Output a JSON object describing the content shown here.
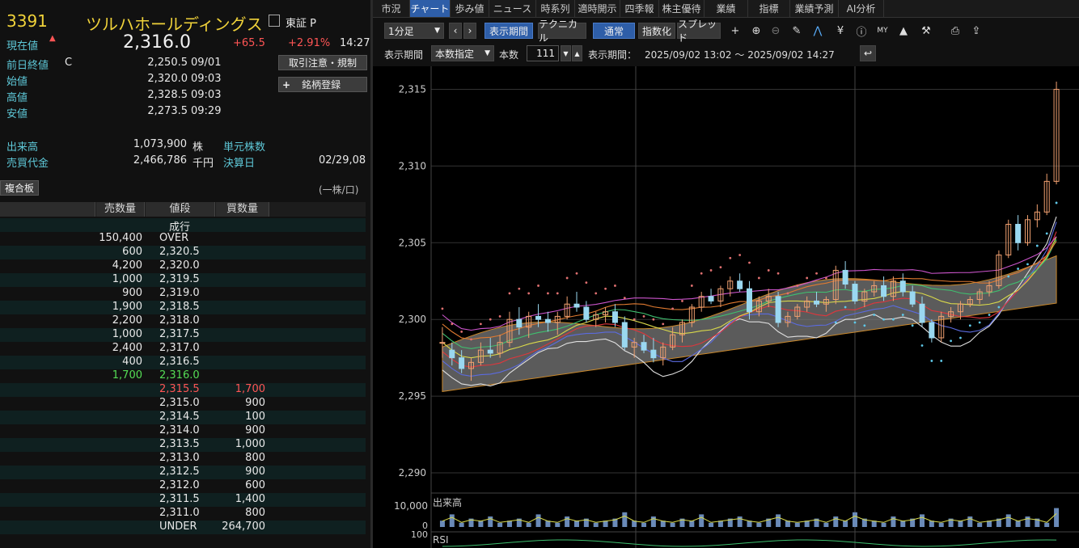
{
  "stock": {
    "code": "3391",
    "name": "ツルハホールディングス",
    "market": "東証 P",
    "current_label": "現在値",
    "current_price": "2,316.0",
    "change": "+65.5",
    "change_pct": "+2.91%",
    "time": "14:27",
    "rows": [
      {
        "label": "前日終値",
        "flag": "C",
        "value": "2,250.5",
        "time": "09/01"
      },
      {
        "label": "始値",
        "flag": "",
        "value": "2,320.0",
        "time": "09:03"
      },
      {
        "label": "高値",
        "flag": "",
        "value": "2,328.5",
        "time": "09:03"
      },
      {
        "label": "安値",
        "flag": "",
        "value": "2,273.5",
        "time": "09:29"
      }
    ],
    "volume_label": "出来高",
    "volume": "1,073,900",
    "volume_unit": "株",
    "turnover_label": "売買代金",
    "turnover": "2,466,786",
    "turnover_unit": "千円",
    "unit_label": "単元株数",
    "settle_label": "決算日",
    "settle_value": "02/29,08"
  },
  "buttons": {
    "notice": "取引注意・規制",
    "register": "銘柄登録",
    "register_icon": "plus-icon",
    "fukugou": "複合板",
    "per_share": "(一株/口)"
  },
  "orderbook": {
    "headers": [
      "売数量",
      "値段",
      "買数量"
    ],
    "market_order": "成行",
    "rows": [
      {
        "sell": "150,400",
        "price": "OVER",
        "buy": ""
      },
      {
        "sell": "600",
        "price": "2,320.5",
        "buy": ""
      },
      {
        "sell": "4,200",
        "price": "2,320.0",
        "buy": ""
      },
      {
        "sell": "1,000",
        "price": "2,319.5",
        "buy": ""
      },
      {
        "sell": "900",
        "price": "2,319.0",
        "buy": ""
      },
      {
        "sell": "1,900",
        "price": "2,318.5",
        "buy": ""
      },
      {
        "sell": "2,200",
        "price": "2,318.0",
        "buy": ""
      },
      {
        "sell": "1,000",
        "price": "2,317.5",
        "buy": ""
      },
      {
        "sell": "2,400",
        "price": "2,317.0",
        "buy": ""
      },
      {
        "sell": "400",
        "price": "2,316.5",
        "buy": ""
      },
      {
        "sell": "1,700",
        "price": "2,316.0",
        "buy": "",
        "hl": "green"
      },
      {
        "sell": "",
        "price": "2,315.5",
        "buy": "1,700",
        "hl": "red"
      },
      {
        "sell": "",
        "price": "2,315.0",
        "buy": "900"
      },
      {
        "sell": "",
        "price": "2,314.5",
        "buy": "100"
      },
      {
        "sell": "",
        "price": "2,314.0",
        "buy": "900"
      },
      {
        "sell": "",
        "price": "2,313.5",
        "buy": "1,000"
      },
      {
        "sell": "",
        "price": "2,313.0",
        "buy": "800"
      },
      {
        "sell": "",
        "price": "2,312.5",
        "buy": "900"
      },
      {
        "sell": "",
        "price": "2,312.0",
        "buy": "600"
      },
      {
        "sell": "",
        "price": "2,311.5",
        "buy": "1,400"
      },
      {
        "sell": "",
        "price": "2,311.0",
        "buy": "800"
      },
      {
        "sell": "",
        "price": "UNDER",
        "buy": "264,700"
      }
    ]
  },
  "tabs": [
    "市況",
    "チャート",
    "歩み値",
    "ニュース",
    "時系列",
    "適時開示",
    "四季報",
    "株主優待",
    "業績",
    "指標",
    "業績予測",
    "AI分析"
  ],
  "active_tab": "チャート",
  "toolbar": {
    "interval": "1分足",
    "period_btn": "表示期間",
    "technical_btn": "テクニカル",
    "normal_btn": "通常",
    "index_btn": "指数化",
    "spread_btn": "スプレッド",
    "period_label": "表示期間",
    "count_mode": "本数指定",
    "count_label": "本数",
    "count_value": "111",
    "range_label": "表示期間：",
    "range_value": "2025/09/02 13:02 ～ 2025/09/02 14:27",
    "icons": [
      "crosshair-icon",
      "zoom-in-icon",
      "zoom-out-icon",
      "pencil-icon",
      "line-tool-icon",
      "yen-icon",
      "info-icon",
      "my-icon",
      "area-chart-icon",
      "wrench-icon",
      "print-icon",
      "export-icon",
      "reset-icon"
    ]
  },
  "chart_data": {
    "type": "candlestick",
    "y_ticks": [
      "2,315",
      "2,310",
      "2,305",
      "2,300",
      "2,295",
      "2,290"
    ],
    "ylim": [
      2289,
      2316.5
    ],
    "volume_label": "出来高",
    "volume_tick": "10,000",
    "volume_zero": "0",
    "rsi_label": "RSI",
    "rsi_tick": "100",
    "candles": [
      [
        2298.5,
        2299.5,
        2297.5,
        2298.5
      ],
      [
        2298.0,
        2298.5,
        2297.0,
        2297.5
      ],
      [
        2297.5,
        2298.0,
        2296.5,
        2296.8
      ],
      [
        2296.8,
        2297.5,
        2296.0,
        2297.2
      ],
      [
        2297.2,
        2298.5,
        2297.0,
        2298.0
      ],
      [
        2298.0,
        2298.8,
        2297.5,
        2297.8
      ],
      [
        2297.8,
        2299.0,
        2297.5,
        2298.5
      ],
      [
        2298.5,
        2300.5,
        2298.2,
        2300.0
      ],
      [
        2300.0,
        2300.8,
        2299.0,
        2299.5
      ],
      [
        2299.5,
        2300.5,
        2298.8,
        2300.2
      ],
      [
        2300.2,
        2301.0,
        2299.5,
        2300.0
      ],
      [
        2300.0,
        2300.5,
        2299.2,
        2299.8
      ],
      [
        2299.8,
        2300.5,
        2299.0,
        2300.2
      ],
      [
        2300.2,
        2301.5,
        2300.0,
        2301.0
      ],
      [
        2301.0,
        2301.8,
        2300.5,
        2300.8
      ],
      [
        2300.8,
        2301.2,
        2299.8,
        2300.0
      ],
      [
        2300.0,
        2300.5,
        2299.5,
        2300.3
      ],
      [
        2300.3,
        2300.8,
        2299.8,
        2300.5
      ],
      [
        2300.5,
        2301.0,
        2299.5,
        2299.8
      ],
      [
        2299.8,
        2300.2,
        2298.0,
        2298.2
      ],
      [
        2298.2,
        2298.8,
        2297.5,
        2298.5
      ],
      [
        2298.5,
        2299.0,
        2297.8,
        2298.0
      ],
      [
        2298.0,
        2298.8,
        2297.2,
        2297.5
      ],
      [
        2297.5,
        2298.5,
        2297.0,
        2298.2
      ],
      [
        2298.2,
        2299.5,
        2298.0,
        2299.0
      ],
      [
        2299.0,
        2300.0,
        2298.5,
        2299.8
      ],
      [
        2299.8,
        2301.0,
        2299.5,
        2300.8
      ],
      [
        2300.8,
        2301.8,
        2300.5,
        2301.5
      ],
      [
        2301.5,
        2302.0,
        2301.0,
        2301.2
      ],
      [
        2301.2,
        2302.2,
        2300.8,
        2302.0
      ],
      [
        2302.0,
        2302.8,
        2301.5,
        2302.5
      ],
      [
        2302.5,
        2303.0,
        2301.8,
        2302.0
      ],
      [
        2302.0,
        2302.5,
        2300.0,
        2300.5
      ],
      [
        2300.5,
        2301.5,
        2300.2,
        2301.2
      ],
      [
        2301.2,
        2302.0,
        2300.8,
        2301.5
      ],
      [
        2301.5,
        2301.8,
        2299.5,
        2299.8
      ],
      [
        2299.8,
        2300.5,
        2299.5,
        2300.2
      ],
      [
        2300.2,
        2301.0,
        2300.0,
        2300.8
      ],
      [
        2300.8,
        2301.5,
        2300.5,
        2301.2
      ],
      [
        2301.2,
        2301.8,
        2300.8,
        2301.0
      ],
      [
        2301.0,
        2301.5,
        2300.5,
        2301.3
      ],
      [
        2301.3,
        2303.5,
        2301.0,
        2303.2
      ],
      [
        2303.2,
        2303.8,
        2302.0,
        2302.3
      ],
      [
        2302.3,
        2302.5,
        2301.0,
        2301.2
      ],
      [
        2301.2,
        2302.0,
        2300.8,
        2301.8
      ],
      [
        2301.8,
        2302.5,
        2301.5,
        2302.2
      ],
      [
        2302.2,
        2302.8,
        2301.2,
        2301.5
      ],
      [
        2301.5,
        2302.8,
        2301.2,
        2302.5
      ],
      [
        2302.5,
        2303.0,
        2301.5,
        2301.8
      ],
      [
        2301.8,
        2302.2,
        2300.8,
        2301.0
      ],
      [
        2301.0,
        2301.5,
        2299.5,
        2299.8
      ],
      [
        2299.8,
        2300.0,
        2298.5,
        2298.8
      ],
      [
        2298.8,
        2300.5,
        2298.5,
        2300.2
      ],
      [
        2300.2,
        2300.8,
        2299.8,
        2300.5
      ],
      [
        2300.5,
        2301.2,
        2300.0,
        2301.0
      ],
      [
        2301.0,
        2301.5,
        2300.8,
        2301.3
      ],
      [
        2301.3,
        2302.0,
        2301.0,
        2301.8
      ],
      [
        2301.8,
        2302.5,
        2301.5,
        2302.2
      ],
      [
        2302.2,
        2304.5,
        2302.0,
        2304.2
      ],
      [
        2304.2,
        2306.5,
        2304.0,
        2306.2
      ],
      [
        2306.2,
        2306.8,
        2304.5,
        2305.0
      ],
      [
        2305.0,
        2306.8,
        2304.8,
        2306.5
      ],
      [
        2306.5,
        2307.5,
        2306.0,
        2307.0
      ],
      [
        2307.0,
        2309.5,
        2306.8,
        2309.0
      ],
      [
        2309.0,
        2315.5,
        2308.8,
        2315.0
      ]
    ],
    "volume": [
      3,
      6,
      2,
      4,
      3,
      5,
      2,
      3,
      4,
      2,
      6,
      3,
      2,
      5,
      3,
      4,
      2,
      3,
      4,
      7,
      3,
      2,
      5,
      3,
      2,
      4,
      3,
      6,
      2,
      3,
      4,
      5,
      3,
      2,
      4,
      6,
      3,
      2,
      3,
      4,
      2,
      5,
      3,
      7,
      4,
      3,
      2,
      5,
      3,
      4,
      6,
      3,
      2,
      4,
      3,
      5,
      2,
      3,
      4,
      6,
      3,
      5,
      4,
      2,
      9
    ]
  }
}
